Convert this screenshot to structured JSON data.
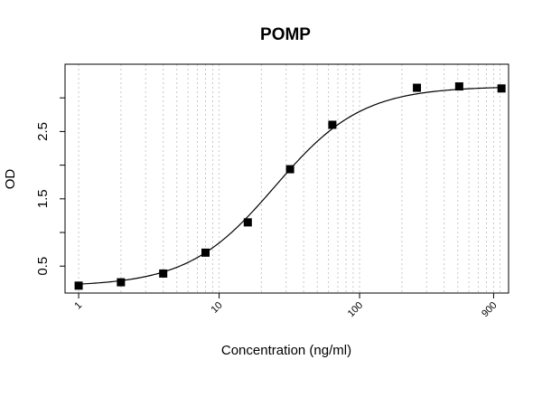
{
  "chart_data": {
    "type": "scatter",
    "title": "POMP",
    "xlabel": "Concentration (ng/ml)",
    "ylabel": "OD",
    "x_scale": "log",
    "xlim": [
      0.8,
      1150
    ],
    "ylim": [
      0.1,
      3.5
    ],
    "x_ticks": [
      1,
      10,
      100,
      900
    ],
    "x_tick_labels": [
      "1",
      "10",
      "100",
      "900"
    ],
    "y_ticks": [
      0.5,
      1.0,
      1.5,
      2.0,
      2.5,
      3.0
    ],
    "y_tick_labels": [
      "0.5",
      "",
      "1.5",
      "",
      "2.5",
      ""
    ],
    "grid": "vertical-log-dotted",
    "series": [
      {
        "points": [
          {
            "x": 1,
            "y": 0.21
          },
          {
            "x": 2,
            "y": 0.26
          },
          {
            "x": 4,
            "y": 0.39
          },
          {
            "x": 8,
            "y": 0.7
          },
          {
            "x": 16,
            "y": 1.15
          },
          {
            "x": 32,
            "y": 1.94
          },
          {
            "x": 64,
            "y": 2.6
          },
          {
            "x": 256,
            "y": 3.15
          },
          {
            "x": 512,
            "y": 3.17
          },
          {
            "x": 1024,
            "y": 3.14
          }
        ]
      }
    ],
    "fit": {
      "model": "4PL",
      "bottom": 0.2,
      "top": 3.17,
      "ec50": 25,
      "hill": 1.4
    }
  }
}
